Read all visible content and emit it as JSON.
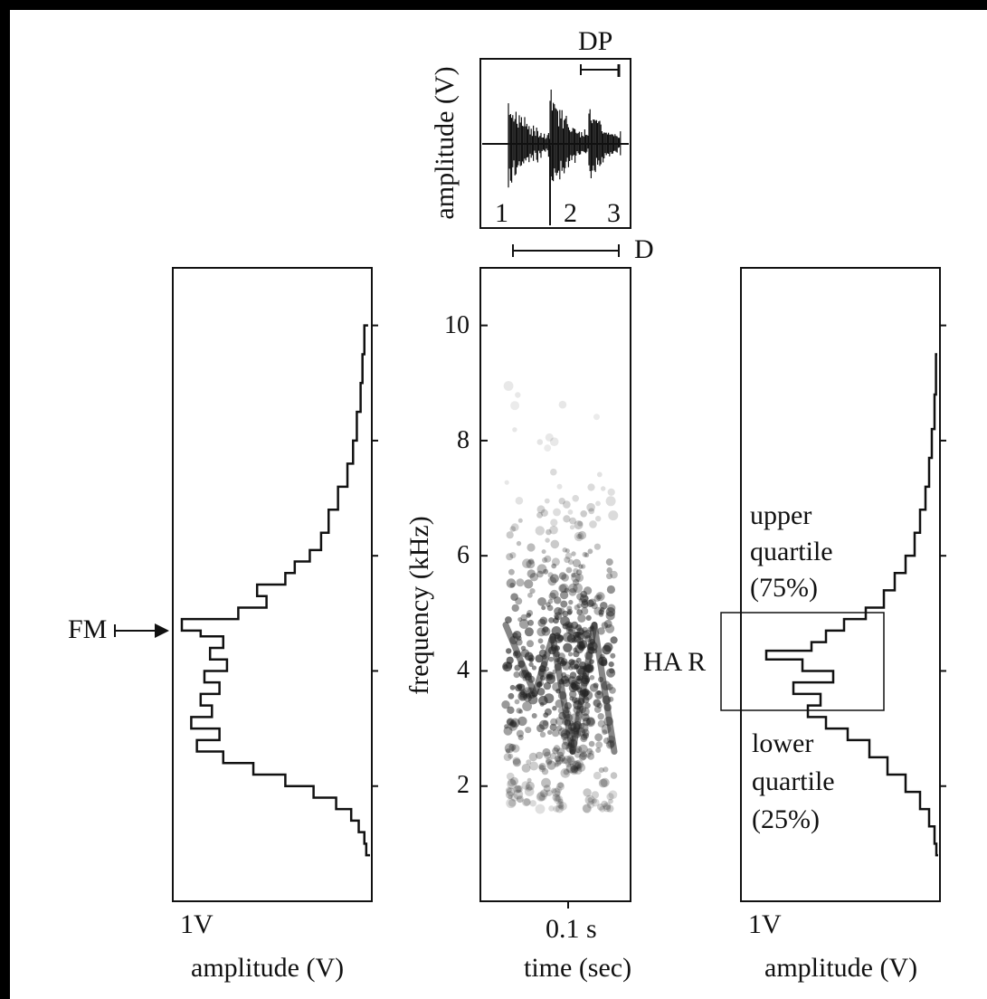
{
  "chart_data": [
    {
      "type": "line",
      "panel": "oscillogram",
      "ylabel": "amplitude (V)",
      "segment_labels": [
        "1",
        "2",
        "3"
      ],
      "bracket_labels": {
        "dominant_period": "DP",
        "duration": "D"
      }
    },
    {
      "type": "line",
      "panel": "left-power-spectrum",
      "xlabel": "amplitude (V)",
      "x_tick_label": "1V",
      "y_range_khz": [
        0,
        11
      ],
      "annotation": "FM",
      "peak_frequency_khz": 4.7,
      "spectrum": [
        [
          0.8,
          0.02
        ],
        [
          1.0,
          0.03
        ],
        [
          1.2,
          0.06
        ],
        [
          1.4,
          0.1
        ],
        [
          1.6,
          0.18
        ],
        [
          1.8,
          0.3
        ],
        [
          2.0,
          0.45
        ],
        [
          2.2,
          0.62
        ],
        [
          2.4,
          0.78
        ],
        [
          2.6,
          0.92
        ],
        [
          2.8,
          0.8
        ],
        [
          3.0,
          0.95
        ],
        [
          3.2,
          0.84
        ],
        [
          3.4,
          0.9
        ],
        [
          3.6,
          0.8
        ],
        [
          3.8,
          0.88
        ],
        [
          4.0,
          0.76
        ],
        [
          4.2,
          0.85
        ],
        [
          4.4,
          0.78
        ],
        [
          4.6,
          0.9
        ],
        [
          4.7,
          1.0
        ],
        [
          4.9,
          0.7
        ],
        [
          5.1,
          0.55
        ],
        [
          5.3,
          0.6
        ],
        [
          5.5,
          0.45
        ],
        [
          5.7,
          0.4
        ],
        [
          5.9,
          0.32
        ],
        [
          6.1,
          0.26
        ],
        [
          6.4,
          0.22
        ],
        [
          6.8,
          0.17
        ],
        [
          7.2,
          0.12
        ],
        [
          7.6,
          0.09
        ],
        [
          8.0,
          0.07
        ],
        [
          8.5,
          0.05
        ],
        [
          9.0,
          0.04
        ],
        [
          9.5,
          0.03
        ],
        [
          10.0,
          0.01
        ]
      ]
    },
    {
      "type": "heatmap",
      "panel": "spectrogram",
      "xlabel": "time (sec)",
      "ylabel": "frequency (kHz)",
      "y_ticks": [
        "2",
        "4",
        "6",
        "8",
        "10"
      ],
      "y_range": [
        0,
        11
      ],
      "time_scale_label": "0.1 s"
    },
    {
      "type": "line",
      "panel": "right-power-spectrum",
      "xlabel": "amplitude (V)",
      "x_tick_label": "1V",
      "annotations": {
        "upper_line1": "upper",
        "upper_line2": "quartile",
        "upper_line3": "(75%)",
        "lower_line1": "lower",
        "lower_line2": "quartile",
        "lower_line3": "(25%)",
        "range": "HA R"
      },
      "upper_quartile_khz": 5.0,
      "lower_quartile_khz": 3.3,
      "spectrum": [
        [
          0.8,
          0.01
        ],
        [
          1.0,
          0.02
        ],
        [
          1.3,
          0.05
        ],
        [
          1.6,
          0.1
        ],
        [
          1.9,
          0.18
        ],
        [
          2.2,
          0.28
        ],
        [
          2.5,
          0.38
        ],
        [
          2.8,
          0.5
        ],
        [
          3.0,
          0.62
        ],
        [
          3.2,
          0.72
        ],
        [
          3.4,
          0.65
        ],
        [
          3.6,
          0.8
        ],
        [
          3.8,
          0.58
        ],
        [
          4.0,
          0.75
        ],
        [
          4.2,
          0.95
        ],
        [
          4.35,
          0.7
        ],
        [
          4.5,
          0.62
        ],
        [
          4.7,
          0.52
        ],
        [
          4.9,
          0.4
        ],
        [
          5.1,
          0.3
        ],
        [
          5.4,
          0.24
        ],
        [
          5.7,
          0.18
        ],
        [
          6.0,
          0.13
        ],
        [
          6.4,
          0.1
        ],
        [
          6.8,
          0.07
        ],
        [
          7.2,
          0.05
        ],
        [
          7.7,
          0.035
        ],
        [
          8.2,
          0.02
        ],
        [
          8.8,
          0.012
        ],
        [
          9.5,
          0.005
        ]
      ]
    }
  ]
}
